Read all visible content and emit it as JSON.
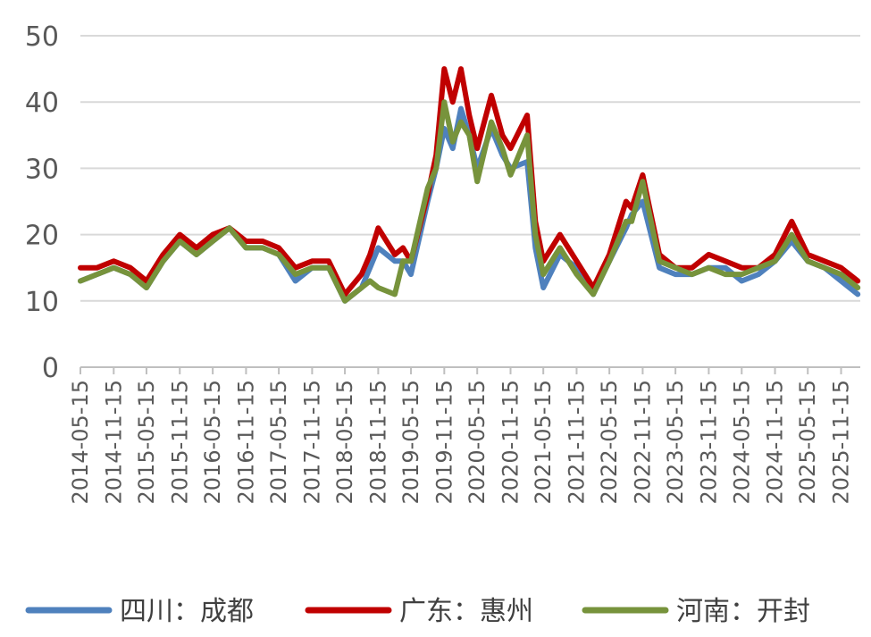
{
  "chart_data": {
    "type": "line",
    "title": "",
    "xlabel": "",
    "ylabel": "",
    "ylim": [
      0,
      50
    ],
    "y_ticks": [
      "0",
      "10",
      "20",
      "30",
      "40",
      "50"
    ],
    "x_ticks": [
      "2014-05-15",
      "2014-11-15",
      "2015-05-15",
      "2015-11-15",
      "2016-05-15",
      "2016-11-15",
      "2017-05-15",
      "2017-11-15",
      "2018-05-15",
      "2018-11-15",
      "2019-05-15",
      "2019-11-15",
      "2020-05-15",
      "2020-11-15",
      "2021-05-15",
      "2021-11-15",
      "2022-05-15",
      "2022-11-15",
      "2023-05-15",
      "2023-11-15",
      "2024-05-15",
      "2024-11-15",
      "2025-05-15",
      "2025-11-15"
    ],
    "grid": "horizontal",
    "legend_position": "bottom",
    "series": [
      {
        "name": "四川：成都",
        "color": "#4f81bd",
        "x": [
          "2014-05-15",
          "2014-08-15",
          "2014-11-15",
          "2015-02-15",
          "2015-05-15",
          "2015-08-15",
          "2015-11-15",
          "2016-02-15",
          "2016-05-15",
          "2016-08-15",
          "2016-11-15",
          "2017-02-15",
          "2017-05-15",
          "2017-08-15",
          "2017-11-15",
          "2018-02-15",
          "2018-05-15",
          "2018-08-15",
          "2018-10-01",
          "2018-11-15",
          "2019-02-15",
          "2019-04-01",
          "2019-05-15",
          "2019-08-15",
          "2019-10-01",
          "2019-11-15",
          "2020-01-01",
          "2020-02-15",
          "2020-04-01",
          "2020-05-15",
          "2020-08-01",
          "2020-10-01",
          "2020-11-15",
          "2021-02-15",
          "2021-04-01",
          "2021-05-15",
          "2021-08-15",
          "2021-11-15",
          "2022-02-15",
          "2022-05-15",
          "2022-08-15",
          "2022-09-15",
          "2022-11-15",
          "2023-02-15",
          "2023-05-15",
          "2023-08-15",
          "2023-11-15",
          "2024-02-15",
          "2024-05-15",
          "2024-08-15",
          "2024-11-15",
          "2025-02-15",
          "2025-05-15",
          "2025-08-15",
          "2025-11-15",
          "2026-02-15"
        ],
        "values": [
          13,
          14,
          15,
          14,
          12,
          16,
          19,
          17,
          19,
          21,
          18,
          18,
          17,
          13,
          15,
          15,
          10,
          12,
          15,
          18,
          16,
          16,
          14,
          25,
          30,
          36,
          33,
          39,
          35,
          30,
          36,
          32,
          30,
          31,
          18,
          12,
          17,
          15,
          11,
          16,
          21,
          23,
          25,
          15,
          14,
          14,
          15,
          15,
          13,
          14,
          16,
          19,
          16,
          15,
          13,
          11
        ]
      },
      {
        "name": "广东：惠州",
        "color": "#c00000",
        "x": [
          "2014-05-15",
          "2014-08-15",
          "2014-11-15",
          "2015-02-15",
          "2015-05-15",
          "2015-08-15",
          "2015-11-15",
          "2016-02-15",
          "2016-05-15",
          "2016-08-15",
          "2016-11-15",
          "2017-02-15",
          "2017-05-15",
          "2017-08-15",
          "2017-11-15",
          "2018-02-15",
          "2018-05-15",
          "2018-08-15",
          "2018-10-01",
          "2018-11-15",
          "2019-02-15",
          "2019-04-01",
          "2019-05-15",
          "2019-08-15",
          "2019-10-01",
          "2019-11-15",
          "2020-01-01",
          "2020-02-15",
          "2020-04-01",
          "2020-05-15",
          "2020-08-01",
          "2020-10-01",
          "2020-11-15",
          "2021-02-15",
          "2021-04-01",
          "2021-05-15",
          "2021-08-15",
          "2021-11-15",
          "2022-02-15",
          "2022-05-15",
          "2022-08-15",
          "2022-09-15",
          "2022-11-15",
          "2023-02-15",
          "2023-05-15",
          "2023-08-15",
          "2023-11-15",
          "2024-02-15",
          "2024-05-15",
          "2024-08-15",
          "2024-11-15",
          "2025-02-15",
          "2025-05-15",
          "2025-08-15",
          "2025-11-15",
          "2026-02-15"
        ],
        "values": [
          15,
          15,
          16,
          15,
          13,
          17,
          20,
          18,
          20,
          21,
          19,
          19,
          18,
          15,
          16,
          16,
          11,
          14,
          17,
          21,
          17,
          18,
          16,
          26,
          32,
          45,
          40,
          45,
          38,
          33,
          41,
          35,
          33,
          38,
          22,
          16,
          20,
          16,
          12,
          17,
          25,
          24,
          29,
          17,
          15,
          15,
          17,
          16,
          15,
          15,
          17,
          22,
          17,
          16,
          15,
          13
        ]
      },
      {
        "name": "河南：开封",
        "color": "#77933c",
        "x": [
          "2014-05-15",
          "2014-08-15",
          "2014-11-15",
          "2015-02-15",
          "2015-05-15",
          "2015-08-15",
          "2015-11-15",
          "2016-02-15",
          "2016-05-15",
          "2016-08-15",
          "2016-11-15",
          "2017-02-15",
          "2017-05-15",
          "2017-08-15",
          "2017-11-15",
          "2018-02-15",
          "2018-05-15",
          "2018-08-15",
          "2018-10-01",
          "2018-11-15",
          "2019-02-15",
          "2019-04-01",
          "2019-05-15",
          "2019-08-15",
          "2019-10-01",
          "2019-11-15",
          "2020-01-01",
          "2020-02-15",
          "2020-04-01",
          "2020-05-15",
          "2020-08-01",
          "2020-10-01",
          "2020-11-15",
          "2021-02-15",
          "2021-04-01",
          "2021-05-15",
          "2021-08-15",
          "2021-11-15",
          "2022-02-15",
          "2022-05-15",
          "2022-08-15",
          "2022-09-15",
          "2022-11-15",
          "2023-02-15",
          "2023-05-15",
          "2023-08-15",
          "2023-11-15",
          "2024-02-15",
          "2024-05-15",
          "2024-08-15",
          "2024-11-15",
          "2025-02-15",
          "2025-05-15",
          "2025-08-15",
          "2025-11-15",
          "2026-02-15"
        ],
        "values": [
          13,
          14,
          15,
          14,
          12,
          16,
          19,
          17,
          19,
          21,
          18,
          18,
          17,
          14,
          15,
          15,
          10,
          12,
          13,
          12,
          11,
          16,
          16,
          27,
          30,
          40,
          34,
          37,
          35,
          28,
          37,
          33,
          29,
          35,
          20,
          14,
          18,
          14,
          11,
          16,
          22,
          22,
          28,
          16,
          15,
          14,
          15,
          14,
          14,
          15,
          16,
          20,
          16,
          15,
          14,
          12
        ]
      }
    ]
  }
}
